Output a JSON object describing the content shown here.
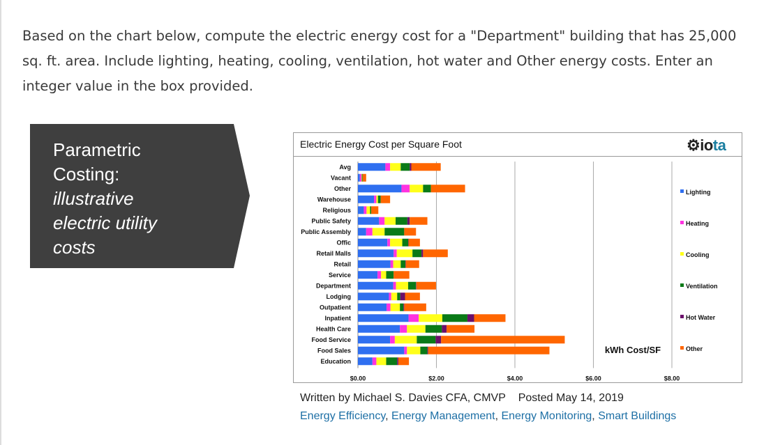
{
  "question": "Based on the chart below, compute the electric energy cost for a \"Department\" building that has 25,000 sq. ft. area. Include lighting, heating, cooling, ventilation, hot water and Other energy costs. Enter an integer value in the box provided.",
  "callout": {
    "line1": "Parametric",
    "line2": "Costing:",
    "line3": "illustrative",
    "line4": "electric utility",
    "line5": "costs"
  },
  "logo": {
    "text1": "io",
    "text2": "ta"
  },
  "caption": {
    "author": "Written by Michael S. Davies CFA, CMVP",
    "posted": "Posted May 14, 2019"
  },
  "tags": [
    "Energy Efficiency",
    "Energy Management",
    "Energy Monitoring",
    "Smart Buildings"
  ],
  "chart_data": {
    "type": "bar",
    "orientation": "horizontal",
    "stacked": true,
    "title": "Electric Energy Cost per Square Foot",
    "xlabel": "kWh Cost/SF",
    "xlim": [
      0,
      8
    ],
    "xticks": [
      "$0.00",
      "$2.00",
      "$4.00",
      "$6.00",
      "$8.00"
    ],
    "grid": "vertical",
    "legend_position": "right",
    "categories": [
      "Avg",
      "Vacant",
      "Other",
      "Warehouse",
      "Religious",
      "Public Safety",
      "Public Assembly",
      "Offic",
      "Retail Malls",
      "Retail",
      "Service",
      "Department",
      "Lodging",
      "Outpatient",
      "Inpatient",
      "Health Care",
      "Food Service",
      "Food Sales",
      "Education"
    ],
    "series": [
      {
        "name": "Lighting",
        "color": "#2f6ff0",
        "values": [
          0.7,
          0.05,
          1.11,
          0.41,
          0.15,
          0.54,
          0.21,
          0.75,
          0.91,
          0.83,
          0.5,
          0.9,
          0.79,
          0.73,
          1.29,
          1.07,
          0.82,
          1.18,
          0.37
        ]
      },
      {
        "name": "Heating",
        "color": "#ff33e0",
        "values": [
          0.12,
          0.04,
          0.21,
          0.06,
          0.07,
          0.14,
          0.16,
          0.07,
          0.08,
          0.07,
          0.09,
          0.07,
          0.06,
          0.1,
          0.26,
          0.18,
          0.12,
          0.07,
          0.1
        ]
      },
      {
        "name": "Cooling",
        "color": "#ffff1a",
        "values": [
          0.27,
          0.01,
          0.34,
          0.04,
          0.09,
          0.28,
          0.31,
          0.31,
          0.4,
          0.19,
          0.13,
          0.31,
          0.15,
          0.24,
          0.6,
          0.47,
          0.56,
          0.34,
          0.25
        ]
      },
      {
        "name": "Ventilation",
        "color": "#0a7a17",
        "values": [
          0.23,
          0.02,
          0.2,
          0.07,
          0.03,
          0.3,
          0.5,
          0.15,
          0.23,
          0.12,
          0.19,
          0.2,
          0.08,
          0.09,
          0.64,
          0.42,
          0.48,
          0.18,
          0.28
        ]
      },
      {
        "name": "Hot Water",
        "color": "#6b0f6b",
        "values": [
          0.04,
          0.0,
          0.0,
          0.0,
          0.0,
          0.06,
          0.0,
          0.01,
          0.04,
          0.01,
          0.0,
          0.01,
          0.12,
          0.02,
          0.17,
          0.12,
          0.14,
          0.02,
          0.03
        ]
      },
      {
        "name": "Other",
        "color": "#ff6600",
        "values": [
          0.75,
          0.09,
          0.87,
          0.24,
          0.18,
          0.45,
          0.3,
          0.29,
          0.63,
          0.34,
          0.4,
          0.5,
          0.38,
          0.56,
          0.8,
          0.71,
          3.15,
          3.09,
          0.27
        ]
      }
    ]
  }
}
